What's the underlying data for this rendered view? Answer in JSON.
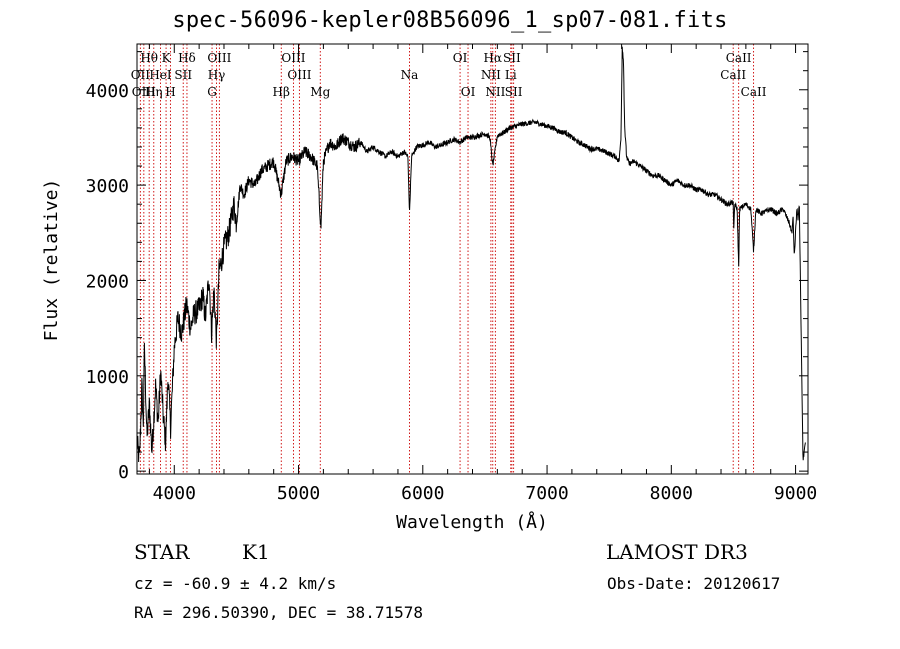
{
  "chart_data": {
    "type": "line",
    "title": "spec-56096-kepler08B56096_1_sp07-081.fits",
    "xlabel": "Wavelength (Å)",
    "ylabel": "Flux (relative)",
    "xlim": [
      3700,
      9100
    ],
    "ylim": [
      -30,
      4480
    ],
    "x_ticks": [
      4000,
      5000,
      6000,
      7000,
      8000,
      9000
    ],
    "y_ticks": [
      0,
      1000,
      2000,
      3000,
      4000
    ],
    "grid": false,
    "line_color": "#000000",
    "marker_color": "#cc0000",
    "spectrum_anchors": [
      [
        3700,
        300
      ],
      [
        3720,
        120
      ],
      [
        3740,
        900
      ],
      [
        3750,
        450
      ],
      [
        3760,
        1300
      ],
      [
        3780,
        350
      ],
      [
        3800,
        700
      ],
      [
        3820,
        200
      ],
      [
        3850,
        900
      ],
      [
        3870,
        500
      ],
      [
        3890,
        1050
      ],
      [
        3910,
        600
      ],
      [
        3930,
        300
      ],
      [
        3950,
        1000
      ],
      [
        3970,
        450
      ],
      [
        4000,
        1300
      ],
      [
        4030,
        1600
      ],
      [
        4060,
        1450
      ],
      [
        4100,
        1750
      ],
      [
        4130,
        1500
      ],
      [
        4160,
        1650
      ],
      [
        4200,
        1700
      ],
      [
        4230,
        1850
      ],
      [
        4250,
        1600
      ],
      [
        4280,
        2050
      ],
      [
        4300,
        1450
      ],
      [
        4320,
        1900
      ],
      [
        4340,
        1350
      ],
      [
        4360,
        2100
      ],
      [
        4380,
        2200
      ],
      [
        4400,
        2350
      ],
      [
        4440,
        2500
      ],
      [
        4480,
        2800
      ],
      [
        4500,
        2600
      ],
      [
        4530,
        3000
      ],
      [
        4560,
        2900
      ],
      [
        4600,
        3050
      ],
      [
        4650,
        3000
      ],
      [
        4700,
        3150
      ],
      [
        4750,
        3200
      ],
      [
        4800,
        3250
      ],
      [
        4860,
        2900
      ],
      [
        4900,
        3250
      ],
      [
        4950,
        3300
      ],
      [
        5000,
        3250
      ],
      [
        5050,
        3350
      ],
      [
        5100,
        3300
      ],
      [
        5150,
        3200
      ],
      [
        5180,
        2550
      ],
      [
        5200,
        3250
      ],
      [
        5250,
        3450
      ],
      [
        5300,
        3400
      ],
      [
        5350,
        3500
      ],
      [
        5400,
        3450
      ],
      [
        5450,
        3400
      ],
      [
        5500,
        3450
      ],
      [
        5550,
        3350
      ],
      [
        5600,
        3400
      ],
      [
        5650,
        3350
      ],
      [
        5700,
        3300
      ],
      [
        5750,
        3350
      ],
      [
        5800,
        3300
      ],
      [
        5850,
        3350
      ],
      [
        5880,
        3300
      ],
      [
        5893,
        2700
      ],
      [
        5910,
        3300
      ],
      [
        5950,
        3400
      ],
      [
        6000,
        3420
      ],
      [
        6050,
        3450
      ],
      [
        6100,
        3400
      ],
      [
        6150,
        3420
      ],
      [
        6200,
        3450
      ],
      [
        6250,
        3480
      ],
      [
        6300,
        3450
      ],
      [
        6350,
        3500
      ],
      [
        6400,
        3500
      ],
      [
        6450,
        3520
      ],
      [
        6500,
        3540
      ],
      [
        6540,
        3500
      ],
      [
        6563,
        3200
      ],
      [
        6600,
        3520
      ],
      [
        6650,
        3550
      ],
      [
        6700,
        3600
      ],
      [
        6750,
        3620
      ],
      [
        6800,
        3640
      ],
      [
        6850,
        3650
      ],
      [
        6900,
        3660
      ],
      [
        6950,
        3640
      ],
      [
        7000,
        3620
      ],
      [
        7050,
        3600
      ],
      [
        7100,
        3560
      ],
      [
        7150,
        3550
      ],
      [
        7200,
        3500
      ],
      [
        7250,
        3450
      ],
      [
        7300,
        3420
      ],
      [
        7350,
        3380
      ],
      [
        7400,
        3380
      ],
      [
        7450,
        3360
      ],
      [
        7500,
        3330
      ],
      [
        7550,
        3300
      ],
      [
        7580,
        3250
      ],
      [
        7595,
        3500
      ],
      [
        7605,
        4460
      ],
      [
        7615,
        4300
      ],
      [
        7625,
        3600
      ],
      [
        7640,
        3300
      ],
      [
        7660,
        3220
      ],
      [
        7700,
        3250
      ],
      [
        7750,
        3200
      ],
      [
        7800,
        3150
      ],
      [
        7850,
        3100
      ],
      [
        7900,
        3100
      ],
      [
        7950,
        3050
      ],
      [
        8000,
        3000
      ],
      [
        8050,
        3050
      ],
      [
        8100,
        3000
      ],
      [
        8150,
        3000
      ],
      [
        8200,
        2950
      ],
      [
        8250,
        2950
      ],
      [
        8300,
        2900
      ],
      [
        8350,
        2900
      ],
      [
        8400,
        2850
      ],
      [
        8450,
        2800
      ],
      [
        8498,
        2820
      ],
      [
        8502,
        2500
      ],
      [
        8510,
        2800
      ],
      [
        8530,
        2750
      ],
      [
        8542,
        2150
      ],
      [
        8550,
        2750
      ],
      [
        8600,
        2800
      ],
      [
        8640,
        2750
      ],
      [
        8662,
        2300
      ],
      [
        8680,
        2750
      ],
      [
        8720,
        2700
      ],
      [
        8800,
        2750
      ],
      [
        8850,
        2700
      ],
      [
        8900,
        2750
      ],
      [
        8950,
        2600
      ],
      [
        8970,
        2500
      ],
      [
        8980,
        2650
      ],
      [
        8990,
        2250
      ],
      [
        9000,
        2500
      ],
      [
        9010,
        2750
      ],
      [
        9020,
        2650
      ],
      [
        9030,
        2800
      ],
      [
        9050,
        1000
      ],
      [
        9060,
        100
      ],
      [
        9080,
        300
      ]
    ],
    "line_markers": [
      {
        "label": "Hθ",
        "wavelength": 3798,
        "row": 1
      },
      {
        "label": "OII",
        "wavelength": 3727,
        "row": 2
      },
      {
        "label": "Hη",
        "wavelength": 3835,
        "row": 3
      },
      {
        "label": "OIII",
        "wavelength": 3755,
        "row": 3
      },
      {
        "label": "K",
        "wavelength": 3934,
        "row": 1
      },
      {
        "label": "HeI",
        "wavelength": 3889,
        "row": 2
      },
      {
        "label": "SII",
        "wavelength": 4072,
        "row": 2
      },
      {
        "label": "H",
        "wavelength": 3969,
        "row": 3
      },
      {
        "label": "Hδ",
        "wavelength": 4102,
        "row": 1
      },
      {
        "label": "OIII",
        "wavelength": 4363,
        "row": 1
      },
      {
        "label": "Hγ",
        "wavelength": 4340,
        "row": 2
      },
      {
        "label": "G",
        "wavelength": 4304,
        "row": 3
      },
      {
        "label": "OIII",
        "wavelength": 4959,
        "row": 1
      },
      {
        "label": "OIII",
        "wavelength": 5007,
        "row": 2
      },
      {
        "label": "Hβ",
        "wavelength": 4861,
        "row": 3
      },
      {
        "label": "Mg",
        "wavelength": 5175,
        "row": 3
      },
      {
        "label": "Na",
        "wavelength": 5893,
        "row": 2
      },
      {
        "label": "OI",
        "wavelength": 6300,
        "row": 1
      },
      {
        "label": "OI",
        "wavelength": 6364,
        "row": 3
      },
      {
        "label": "Hα",
        "wavelength": 6563,
        "row": 1
      },
      {
        "label": "SII",
        "wavelength": 6717,
        "row": 1
      },
      {
        "label": "NII",
        "wavelength": 6548,
        "row": 2
      },
      {
        "label": "Li",
        "wavelength": 6708,
        "row": 2
      },
      {
        "label": "NII",
        "wavelength": 6584,
        "row": 3
      },
      {
        "label": "SII",
        "wavelength": 6731,
        "row": 3
      },
      {
        "label": "CaII",
        "wavelength": 8542,
        "row": 1
      },
      {
        "label": "CaII",
        "wavelength": 8498,
        "row": 2
      },
      {
        "label": "CaII",
        "wavelength": 8662,
        "row": 3
      }
    ]
  },
  "info": {
    "object_class": "STAR",
    "subclass": "K1",
    "survey": "LAMOST DR3",
    "redshift": "cz = -60.9 ± 4.2 km/s",
    "obs_date": "Obs-Date: 20120617",
    "coordinates": "RA = 296.50390, DEC =  38.71578"
  }
}
